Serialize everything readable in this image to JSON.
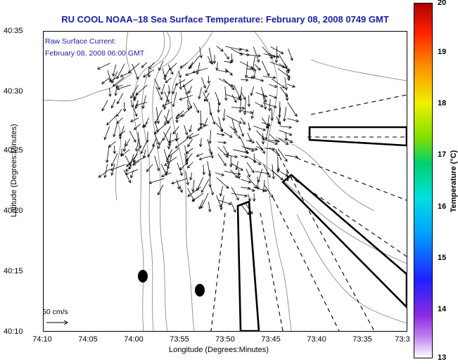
{
  "title": "RU COOL  NOAA–18  Sea Surface Temperature:  February 08, 2008 0749 GMT",
  "overlay": {
    "line1": "Raw Surface Current:",
    "line2": "February 08, 2008 06:00 GMT",
    "scale_label": "50 cm/s"
  },
  "axes": {
    "ylabel": "Latitude (Degrees:Minutes)",
    "xlabel": "Longitude (Degrees:Minutes)",
    "yticks": [
      "40:35",
      "40:30",
      "40:25",
      "40:20",
      "40:15",
      "40:10"
    ],
    "xticks": [
      "74:10",
      "74:05",
      "74:00",
      "73:55",
      "73:50",
      "73:45",
      "73:40",
      "73:35",
      "73:3"
    ]
  },
  "colorbar": {
    "label": "Temperature (°C)",
    "ticks": [
      "20",
      "19",
      "18",
      "17",
      "16",
      "15",
      "14",
      "13"
    ]
  },
  "colors": {
    "title": "#1c1ca8",
    "land_contour": "#8c8c8c",
    "vectors": "#000000"
  }
}
